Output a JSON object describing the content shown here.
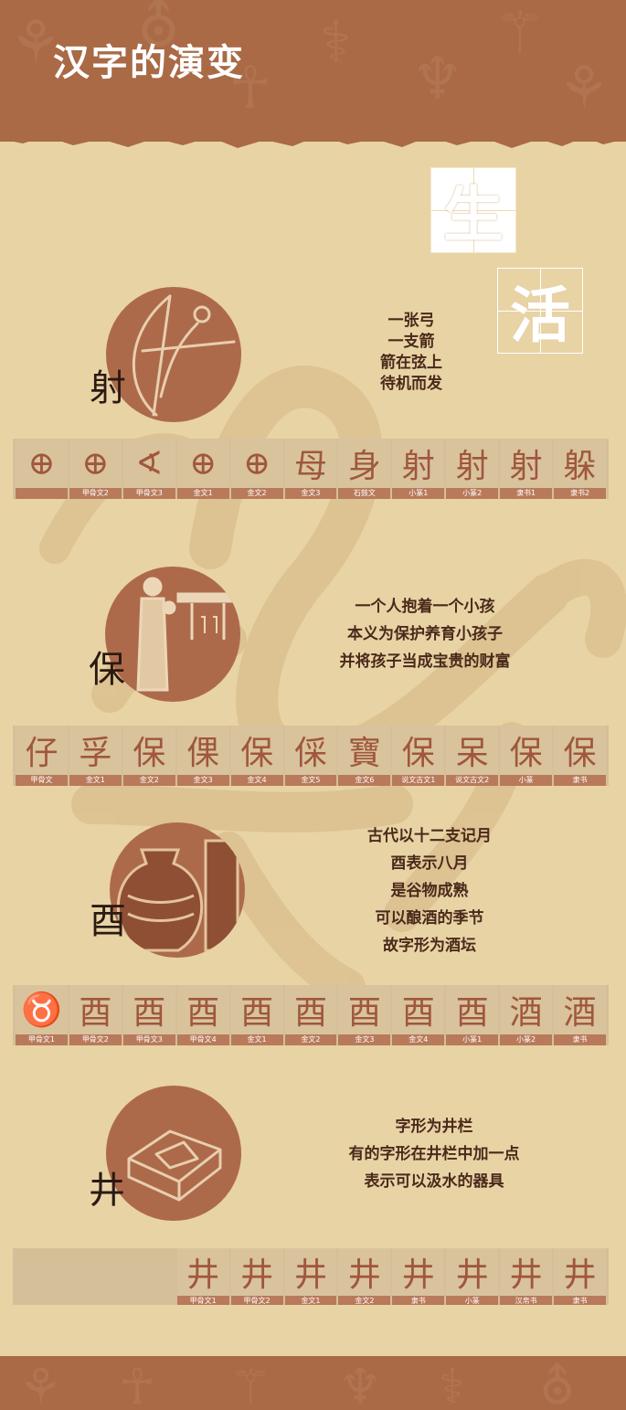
{
  "title": "汉字的演变",
  "theme": {
    "brown": "#a96a45",
    "paper": "#e8d3a5",
    "circle": "#ad6a4b"
  },
  "feature_chars": [
    "生",
    "活"
  ],
  "sections": [
    {
      "char": "射",
      "desc": [
        "一张弓",
        "一支箭",
        "箭在弦上",
        "待机而发"
      ],
      "strip": [
        {
          "glyph": "⊕",
          "label": ""
        },
        {
          "glyph": "⊕",
          "label": "甲骨文2"
        },
        {
          "glyph": "∢",
          "label": "甲骨文3"
        },
        {
          "glyph": "⊕",
          "label": "金文1"
        },
        {
          "glyph": "⊕",
          "label": "金文2"
        },
        {
          "glyph": "母",
          "label": "金文3"
        },
        {
          "glyph": "身",
          "label": "石鼓文"
        },
        {
          "glyph": "射",
          "label": "小篆1"
        },
        {
          "glyph": "射",
          "label": "小篆2"
        },
        {
          "glyph": "射",
          "label": "隶书1"
        },
        {
          "glyph": "躲",
          "label": "隶书2"
        }
      ]
    },
    {
      "char": "保",
      "desc": [
        "一个人抱着一个小孩",
        "本义为保护养育小孩子",
        "并将孩子当成宝贵的财富"
      ],
      "strip": [
        {
          "glyph": "仔",
          "label": "甲骨文"
        },
        {
          "glyph": "孚",
          "label": "金文1"
        },
        {
          "glyph": "保",
          "label": "金文2"
        },
        {
          "glyph": "倮",
          "label": "金文3"
        },
        {
          "glyph": "保",
          "label": "金文4"
        },
        {
          "glyph": "倸",
          "label": "金文5"
        },
        {
          "glyph": "寶",
          "label": "金文6"
        },
        {
          "glyph": "保",
          "label": "说文古文1"
        },
        {
          "glyph": "呆",
          "label": "说文古文2"
        },
        {
          "glyph": "保",
          "label": "小篆"
        },
        {
          "glyph": "保",
          "label": "隶书"
        }
      ]
    },
    {
      "char": "酉",
      "desc": [
        "古代以十二支记月",
        "酉表示八月",
        "是谷物成熟",
        "可以酿酒的季节",
        "故字形为酒坛"
      ],
      "strip": [
        {
          "glyph": "♉",
          "label": "甲骨文1"
        },
        {
          "glyph": "酉",
          "label": "甲骨文2"
        },
        {
          "glyph": "酉",
          "label": "甲骨文3"
        },
        {
          "glyph": "酉",
          "label": "甲骨文4"
        },
        {
          "glyph": "酉",
          "label": "金文1"
        },
        {
          "glyph": "酉",
          "label": "金文2"
        },
        {
          "glyph": "酉",
          "label": "金文3"
        },
        {
          "glyph": "酉",
          "label": "金文4"
        },
        {
          "glyph": "酉",
          "label": "小篆1"
        },
        {
          "glyph": "酒",
          "label": "小篆2"
        },
        {
          "glyph": "酒",
          "label": "隶书"
        }
      ]
    },
    {
      "char": "井",
      "desc": [
        "字形为井栏",
        "有的字形在井栏中加一点",
        "表示可以汲水的器具"
      ],
      "strip": [
        {
          "glyph": "",
          "label": ""
        },
        {
          "glyph": "",
          "label": ""
        },
        {
          "glyph": "",
          "label": ""
        },
        {
          "glyph": "井",
          "label": "甲骨文1"
        },
        {
          "glyph": "井",
          "label": "甲骨文2"
        },
        {
          "glyph": "井",
          "label": "金文1"
        },
        {
          "glyph": "井",
          "label": "金文2"
        },
        {
          "glyph": "井",
          "label": "隶书"
        },
        {
          "glyph": "井",
          "label": "小篆"
        },
        {
          "glyph": "井",
          "label": "汉帛书"
        },
        {
          "glyph": "井",
          "label": "隶书"
        }
      ]
    }
  ]
}
